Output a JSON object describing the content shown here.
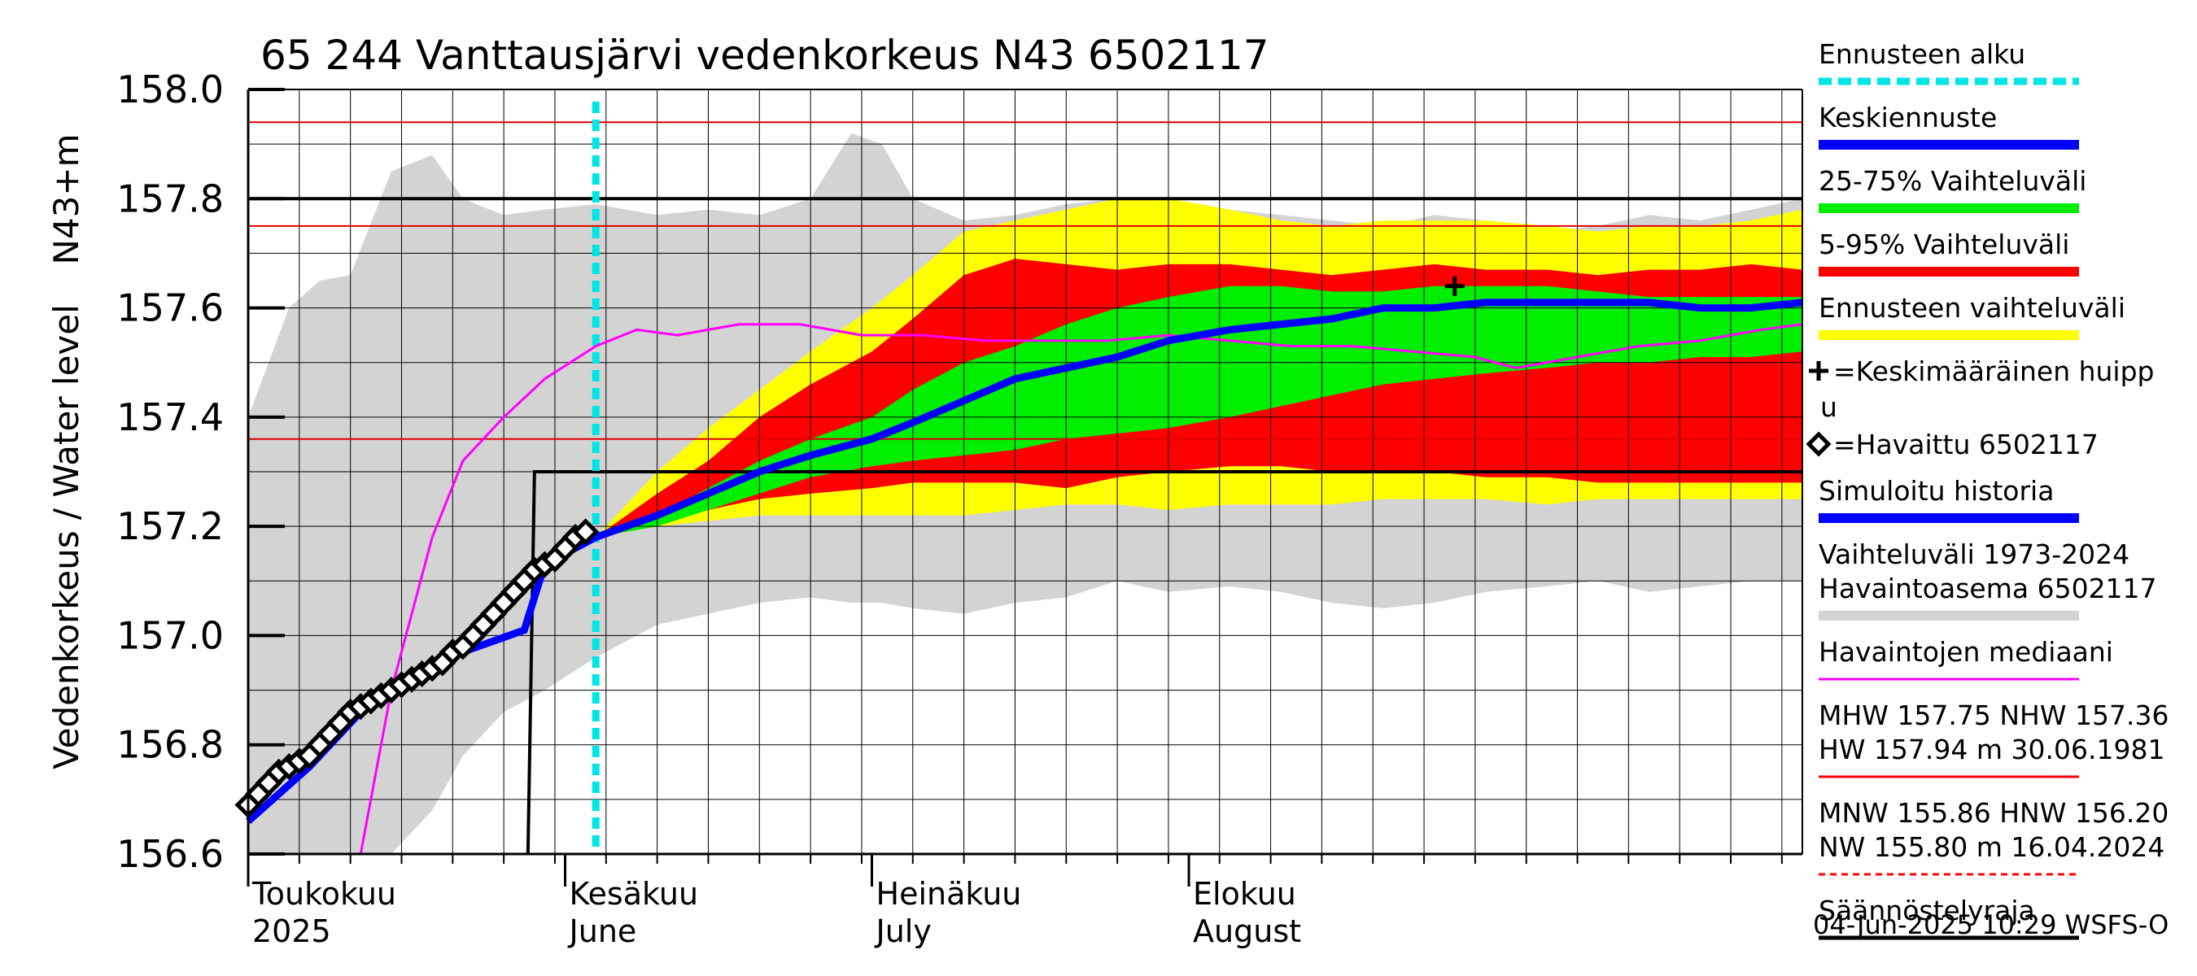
{
  "chart_data": {
    "type": "line",
    "title": "65 244 Vanttausjärvi vedenkorkeus N43 6502117",
    "ylabel": "Vedenkorkeus / Water level",
    "yunit": "N43+m",
    "ylim": [
      156.6,
      158.0
    ],
    "yticks": [
      "156.6",
      "156.8",
      "157.0",
      "157.2",
      "157.4",
      "157.6",
      "157.8",
      "158.0"
    ],
    "x_start": "2025-05-01",
    "x_end": "2025-09-30",
    "month_labels": [
      {
        "top": "Toukokuu",
        "bottom": "2025",
        "date": "2025-05-01"
      },
      {
        "top": "Kesäkuu",
        "bottom": "June",
        "date": "2025-06-01"
      },
      {
        "top": "Heinäkuu",
        "bottom": "July",
        "date": "2025-07-01"
      },
      {
        "top": "Elokuu",
        "bottom": "August",
        "date": "2025-08-01"
      }
    ],
    "forecast_start": "2025-06-04",
    "reference_lines": [
      {
        "name": "HW",
        "value": 157.94,
        "color": "#e00000"
      },
      {
        "name": "MHW",
        "value": 157.75,
        "color": "#e00000"
      },
      {
        "name": "NHW",
        "value": 157.36,
        "color": "#e00000"
      },
      {
        "name": "Säännöstelyraja upper",
        "value": 157.8,
        "color": "#000000"
      }
    ],
    "regulation_limit": {
      "before": 156.6,
      "after": 157.3,
      "step_date": "2025-05-29",
      "color": "#000000"
    },
    "history_range": {
      "dates": [
        "2025-05-01",
        "2025-05-05",
        "2025-05-08",
        "2025-05-11",
        "2025-05-15",
        "2025-05-19",
        "2025-05-22",
        "2025-05-26",
        "2025-05-30",
        "2025-06-04",
        "2025-06-10",
        "2025-06-15",
        "2025-06-20",
        "2025-06-25",
        "2025-06-29",
        "2025-07-02",
        "2025-07-05",
        "2025-07-10",
        "2025-07-15",
        "2025-07-20",
        "2025-07-25",
        "2025-07-30",
        "2025-08-05",
        "2025-08-10",
        "2025-08-15",
        "2025-08-20",
        "2025-08-25",
        "2025-08-30",
        "2025-09-05",
        "2025-09-10",
        "2025-09-15",
        "2025-09-20",
        "2025-09-25",
        "2025-09-30"
      ],
      "upper": [
        157.4,
        157.6,
        157.65,
        157.66,
        157.85,
        157.88,
        157.8,
        157.77,
        157.78,
        157.79,
        157.77,
        157.78,
        157.77,
        157.8,
        157.92,
        157.9,
        157.8,
        157.76,
        157.77,
        157.79,
        157.8,
        157.76,
        157.78,
        157.77,
        157.76,
        157.75,
        157.77,
        157.76,
        157.74,
        157.75,
        157.77,
        157.76,
        157.78,
        157.8
      ],
      "lower": [
        156.6,
        156.6,
        156.6,
        156.6,
        156.6,
        156.68,
        156.78,
        156.86,
        156.9,
        156.96,
        157.02,
        157.04,
        157.06,
        157.07,
        157.06,
        157.06,
        157.05,
        157.04,
        157.06,
        157.07,
        157.1,
        157.08,
        157.09,
        157.08,
        157.06,
        157.05,
        157.06,
        157.08,
        157.09,
        157.1,
        157.08,
        157.09,
        157.1,
        157.1
      ],
      "color": "#d3d3d3"
    },
    "forecast_dates": [
      "2025-06-04",
      "2025-06-10",
      "2025-06-15",
      "2025-06-20",
      "2025-06-25",
      "2025-07-01",
      "2025-07-05",
      "2025-07-10",
      "2025-07-15",
      "2025-07-20",
      "2025-07-25",
      "2025-07-30",
      "2025-08-05",
      "2025-08-10",
      "2025-08-15",
      "2025-08-20",
      "2025-08-25",
      "2025-08-30",
      "2025-09-05",
      "2025-09-10",
      "2025-09-15",
      "2025-09-20",
      "2025-09-25",
      "2025-09-30"
    ],
    "series": [
      {
        "name": "Ennusteen vaihteluväli",
        "kind": "band",
        "color": "#ffff00",
        "upper": [
          157.18,
          157.3,
          157.38,
          157.45,
          157.52,
          157.6,
          157.66,
          157.74,
          157.76,
          157.78,
          157.8,
          157.8,
          157.78,
          157.76,
          157.75,
          157.76,
          157.76,
          157.76,
          157.75,
          157.74,
          157.75,
          157.75,
          157.76,
          157.78
        ],
        "lower": [
          157.18,
          157.2,
          157.21,
          157.22,
          157.22,
          157.22,
          157.22,
          157.22,
          157.23,
          157.24,
          157.24,
          157.23,
          157.24,
          157.24,
          157.24,
          157.25,
          157.25,
          157.25,
          157.24,
          157.25,
          157.25,
          157.25,
          157.25,
          157.25
        ]
      },
      {
        "name": "5-95% Vaihteluväli",
        "kind": "band",
        "color": "#ff0000",
        "upper": [
          157.18,
          157.26,
          157.32,
          157.4,
          157.46,
          157.52,
          157.58,
          157.66,
          157.69,
          157.68,
          157.67,
          157.68,
          157.68,
          157.67,
          157.66,
          157.67,
          157.68,
          157.67,
          157.67,
          157.66,
          157.67,
          157.67,
          157.68,
          157.67
        ],
        "lower": [
          157.18,
          157.21,
          157.23,
          157.25,
          157.26,
          157.27,
          157.28,
          157.28,
          157.28,
          157.27,
          157.29,
          157.3,
          157.31,
          157.31,
          157.3,
          157.3,
          157.3,
          157.29,
          157.29,
          157.28,
          157.28,
          157.28,
          157.28,
          157.28
        ]
      },
      {
        "name": "25-75% Vaihteluväli",
        "kind": "band",
        "color": "#00ee00",
        "upper": [
          157.18,
          157.22,
          157.27,
          157.32,
          157.36,
          157.4,
          157.45,
          157.5,
          157.53,
          157.57,
          157.6,
          157.62,
          157.64,
          157.64,
          157.63,
          157.63,
          157.64,
          157.64,
          157.64,
          157.63,
          157.62,
          157.62,
          157.62,
          157.62
        ],
        "lower": [
          157.18,
          157.2,
          157.23,
          157.26,
          157.29,
          157.31,
          157.32,
          157.33,
          157.34,
          157.36,
          157.37,
          157.38,
          157.4,
          157.42,
          157.44,
          157.46,
          157.47,
          157.48,
          157.49,
          157.5,
          157.5,
          157.51,
          157.51,
          157.52
        ]
      },
      {
        "name": "Keskiennuste",
        "kind": "line",
        "color": "#0000ff",
        "values": [
          157.18,
          157.22,
          157.26,
          157.3,
          157.33,
          157.36,
          157.39,
          157.43,
          157.47,
          157.49,
          157.51,
          157.54,
          157.56,
          157.57,
          157.58,
          157.6,
          157.6,
          157.61,
          157.61,
          157.61,
          157.61,
          157.6,
          157.6,
          157.61
        ]
      },
      {
        "name": "Havaintojen mediaani",
        "kind": "line",
        "color": "#ff00ff",
        "dates": [
          "2025-05-12",
          "2025-05-15",
          "2025-05-19",
          "2025-05-22",
          "2025-05-26",
          "2025-05-30",
          "2025-06-04",
          "2025-06-08",
          "2025-06-12",
          "2025-06-18",
          "2025-06-24",
          "2025-06-30",
          "2025-07-06",
          "2025-07-12",
          "2025-07-18",
          "2025-07-24",
          "2025-07-30",
          "2025-08-05",
          "2025-08-11",
          "2025-08-17",
          "2025-08-23",
          "2025-08-29",
          "2025-09-02",
          "2025-09-08",
          "2025-09-14",
          "2025-09-20",
          "2025-09-26",
          "2025-09-30"
        ],
        "values": [
          156.6,
          156.9,
          157.18,
          157.32,
          157.4,
          157.47,
          157.53,
          157.56,
          157.55,
          157.57,
          157.57,
          157.55,
          157.55,
          157.54,
          157.54,
          157.54,
          157.55,
          157.54,
          157.53,
          157.53,
          157.52,
          157.51,
          157.49,
          157.51,
          157.53,
          157.54,
          157.56,
          157.57
        ]
      },
      {
        "name": "Simuloitu historia",
        "kind": "line",
        "color": "#0000ff",
        "dates": [
          "2025-05-01",
          "2025-05-04",
          "2025-05-07",
          "2025-05-10",
          "2025-05-13",
          "2025-05-16",
          "2025-05-19",
          "2025-05-22",
          "2025-05-25",
          "2025-05-28",
          "2025-05-30",
          "2025-06-01",
          "2025-06-04"
        ],
        "values": [
          156.66,
          156.71,
          156.76,
          156.82,
          156.88,
          156.91,
          156.94,
          156.97,
          156.99,
          157.01,
          157.13,
          157.15,
          157.18
        ]
      },
      {
        "name": "Havaittu 6502117",
        "kind": "marker",
        "marker": "diamond",
        "color": "#000000",
        "dates": [
          "2025-05-01",
          "2025-05-02",
          "2025-05-03",
          "2025-05-04",
          "2025-05-05",
          "2025-05-06",
          "2025-05-07",
          "2025-05-08",
          "2025-05-09",
          "2025-05-10",
          "2025-05-11",
          "2025-05-12",
          "2025-05-13",
          "2025-05-14",
          "2025-05-15",
          "2025-05-16",
          "2025-05-17",
          "2025-05-18",
          "2025-05-19",
          "2025-05-20",
          "2025-05-21",
          "2025-05-22",
          "2025-05-23",
          "2025-05-24",
          "2025-05-25",
          "2025-05-26",
          "2025-05-27",
          "2025-05-28",
          "2025-05-29",
          "2025-05-30",
          "2025-05-31",
          "2025-06-01",
          "2025-06-02",
          "2025-06-03"
        ],
        "values": [
          156.69,
          156.71,
          156.73,
          156.75,
          156.76,
          156.77,
          156.78,
          156.8,
          156.82,
          156.84,
          156.86,
          156.87,
          156.88,
          156.89,
          156.9,
          156.91,
          156.92,
          156.93,
          156.94,
          156.95,
          156.97,
          156.98,
          157.0,
          157.02,
          157.04,
          157.06,
          157.08,
          157.1,
          157.12,
          157.13,
          157.14,
          157.16,
          157.18,
          157.19
        ]
      },
      {
        "name": "Keskimääräinen huippu",
        "kind": "point",
        "marker": "plus",
        "color": "#000000",
        "date": "2025-08-27",
        "value": 157.64
      }
    ],
    "legend": [
      {
        "label": "Ennusteen alku",
        "style": "dash",
        "color": "#00e5e5"
      },
      {
        "label": "Keskiennuste",
        "style": "thick",
        "color": "#0000ff"
      },
      {
        "label": "25-75% Vaihteluväli",
        "style": "thick",
        "color": "#00ee00"
      },
      {
        "label": "5-95% Vaihteluväli",
        "style": "thick",
        "color": "#ff0000"
      },
      {
        "label": "Ennusteen vaihteluväli",
        "style": "thick",
        "color": "#ffff00"
      },
      {
        "label": "=Keskimääräinen huipp",
        "label2": "u",
        "style": "plus",
        "color": "#000000"
      },
      {
        "label": "=Havaittu 6502117",
        "style": "diamond",
        "color": "#000000"
      },
      {
        "label": "Simuloitu historia",
        "style": "thick",
        "color": "#0000ff"
      },
      {
        "label": "Vaihteluväli 1973-2024",
        "label2": " Havaintoasema 6502117",
        "style": "thick",
        "color": "#d3d3d3"
      },
      {
        "label": "Havaintojen mediaani",
        "style": "thin",
        "color": "#ff00ff"
      },
      {
        "label": "MHW 157.75 NHW 157.36",
        "label2": "HW 157.94 m 30.06.1981",
        "style": "thin",
        "color": "#ff0000"
      },
      {
        "label": "MNW 155.86 HNW 156.20",
        "label2": "NW 155.80 m 16.04.2024",
        "style": "dashed-thin",
        "color": "#ff0000"
      },
      {
        "label": "Säännöstelyraja",
        "style": "medium",
        "color": "#000000"
      }
    ],
    "footer": "04-Jun-2025 10:29 WSFS-O",
    "grid": true
  }
}
